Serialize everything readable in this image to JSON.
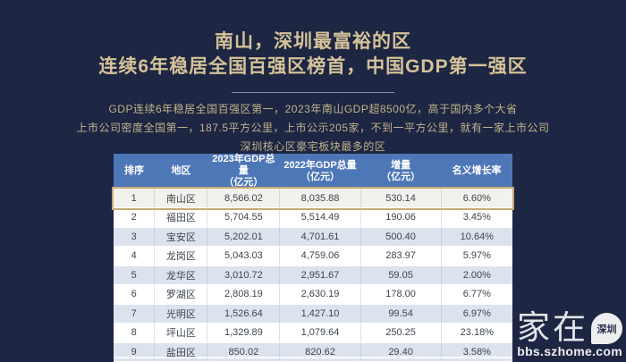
{
  "page": {
    "background_color": "#1d2642",
    "title_gold_color": "#d5c299",
    "description_gold_color": "#c1b38c",
    "header_blue_color": "#4e77b8",
    "alt_row_color": "#dce3ef",
    "highlight_row_color": "#f2f1ec",
    "highlight_border_color": "#c6a875"
  },
  "header": {
    "title_line1": "南山，深圳最富裕的区",
    "title_line2": "连续6年稳居全国百强区榜首，中国GDP第一强区"
  },
  "description": {
    "line1": "GDP连续6年稳居全国百强区第一，2023年南山GDP超8500亿，高于国内多个大省",
    "line2": "上市公司密度全国第一，187.5平方公里，上市公示205家，不到一平方公里，就有一家上市公司",
    "line3": "深圳核心区豪宅板块最多的区"
  },
  "table": {
    "headers": [
      "排序",
      "地区",
      "2023年GDP总量\n（亿元）",
      "2022年GDP总量\n（亿元）",
      "增量\n（亿元）",
      "名义增长率"
    ],
    "rows": [
      {
        "rank": "1",
        "region": "南山区",
        "gdp2023": "8,566.02",
        "gdp2022": "8,035.88",
        "increase": "530.14",
        "growth": "6.60%",
        "highlighted": true
      },
      {
        "rank": "2",
        "region": "福田区",
        "gdp2023": "5,704.55",
        "gdp2022": "5,514.49",
        "increase": "190.06",
        "growth": "3.45%",
        "highlighted": false
      },
      {
        "rank": "3",
        "region": "宝安区",
        "gdp2023": "5,202.01",
        "gdp2022": "4,701.61",
        "increase": "500.40",
        "growth": "10.64%",
        "highlighted": false
      },
      {
        "rank": "4",
        "region": "龙岗区",
        "gdp2023": "5,043.03",
        "gdp2022": "4,759.06",
        "increase": "283.97",
        "growth": "5.97%",
        "highlighted": false
      },
      {
        "rank": "5",
        "region": "龙华区",
        "gdp2023": "3,010.72",
        "gdp2022": "2,951.67",
        "increase": "59.05",
        "growth": "2.00%",
        "highlighted": false
      },
      {
        "rank": "6",
        "region": "罗湖区",
        "gdp2023": "2,808.19",
        "gdp2022": "2,630.19",
        "increase": "178.00",
        "growth": "6.77%",
        "highlighted": false
      },
      {
        "rank": "7",
        "region": "光明区",
        "gdp2023": "1,526.64",
        "gdp2022": "1,427.10",
        "increase": "99.54",
        "growth": "6.97%",
        "highlighted": false
      },
      {
        "rank": "8",
        "region": "坪山区",
        "gdp2023": "1,329.89",
        "gdp2022": "1,079.64",
        "increase": "250.25",
        "growth": "23.18%",
        "highlighted": false
      },
      {
        "rank": "9",
        "region": "盐田区",
        "gdp2023": "850.02",
        "gdp2022": "820.62",
        "increase": "29.40",
        "growth": "3.58%",
        "highlighted": false
      }
    ]
  },
  "watermark": {
    "brand": "家在",
    "city": "深圳",
    "url": "bbs.szhome.com"
  },
  "chart_data": {
    "type": "table",
    "title": "南山，深圳最富裕的区 — 连续6年稳居全国百强区榜首，中国GDP第一强区",
    "columns": [
      "排序",
      "地区",
      "2023年GDP总量（亿元）",
      "2022年GDP总量（亿元）",
      "增量（亿元）",
      "名义增长率"
    ],
    "rows": [
      [
        1,
        "南山区",
        8566.02,
        8035.88,
        530.14,
        "6.60%"
      ],
      [
        2,
        "福田区",
        5704.55,
        5514.49,
        190.06,
        "3.45%"
      ],
      [
        3,
        "宝安区",
        5202.01,
        4701.61,
        500.4,
        "10.64%"
      ],
      [
        4,
        "龙岗区",
        5043.03,
        4759.06,
        283.97,
        "5.97%"
      ],
      [
        5,
        "龙华区",
        3010.72,
        2951.67,
        59.05,
        "2.00%"
      ],
      [
        6,
        "罗湖区",
        2808.19,
        2630.19,
        178.0,
        "6.77%"
      ],
      [
        7,
        "光明区",
        1526.64,
        1427.1,
        99.54,
        "6.97%"
      ],
      [
        8,
        "坪山区",
        1329.89,
        1079.64,
        250.25,
        "23.18%"
      ],
      [
        9,
        "盐田区",
        850.02,
        820.62,
        29.4,
        "3.58%"
      ]
    ],
    "notes": "第1行（南山区）以金色边框高亮显示",
    "layout": {
      "header_position": "top",
      "zebra_stripes": true
    }
  }
}
